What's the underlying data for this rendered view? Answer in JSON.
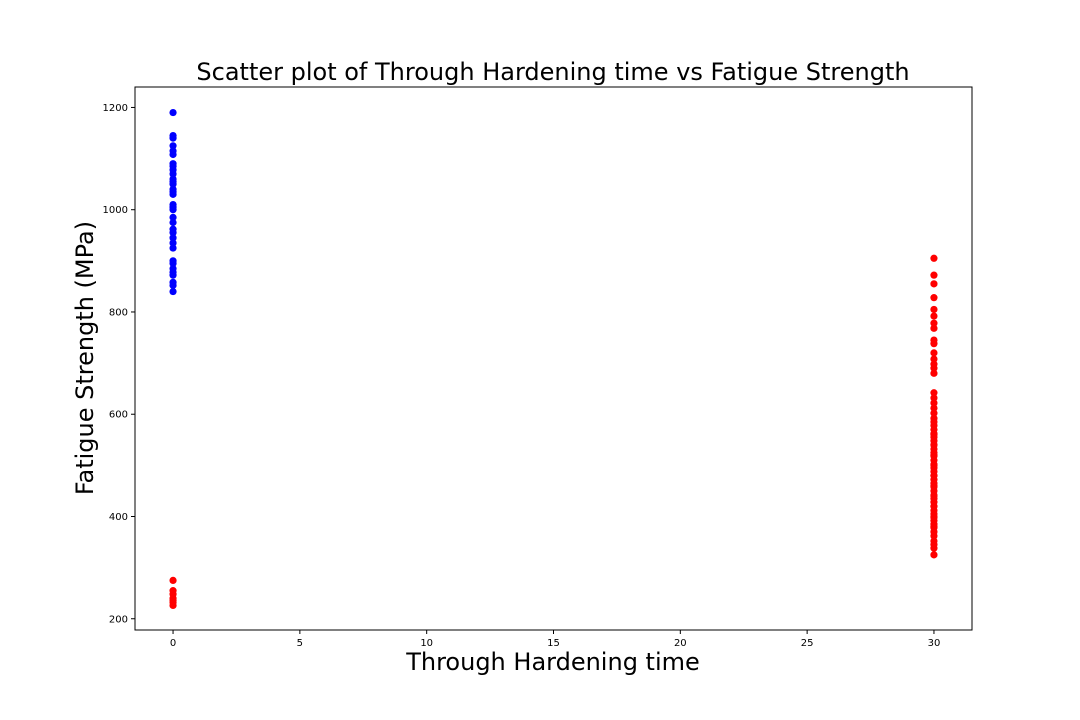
{
  "chart_data": {
    "type": "scatter",
    "title": "Scatter plot of Through Hardening time vs Fatigue Strength",
    "xlabel": "Through Hardening time",
    "ylabel": "Fatigue Strength (MPa)",
    "xlim": [
      -1.5,
      31.5
    ],
    "ylim": [
      178,
      1240
    ],
    "x_ticks": [
      0,
      5,
      10,
      15,
      20,
      25,
      30
    ],
    "y_ticks": [
      200,
      400,
      600,
      800,
      1000,
      1200
    ],
    "x_tick_labels": [
      "0",
      "5",
      "10",
      "15",
      "20",
      "25",
      "30"
    ],
    "y_tick_labels": [
      "200",
      "400",
      "600",
      "800",
      "1000",
      "1200"
    ],
    "grid": false,
    "series": [
      {
        "color": "#0000ff",
        "x": [
          0,
          0,
          0,
          0,
          0,
          0,
          0,
          0,
          0,
          0,
          0,
          0,
          0,
          0,
          0,
          0,
          0,
          0,
          0,
          0,
          0,
          0,
          0,
          0,
          0,
          0,
          0,
          0,
          0,
          0,
          0,
          0,
          0,
          0
        ],
        "y": [
          1190,
          1145,
          1140,
          1125,
          1115,
          1108,
          1090,
          1085,
          1078,
          1070,
          1060,
          1055,
          1040,
          1035,
          1030,
          1010,
          1005,
          1000,
          985,
          975,
          962,
          955,
          945,
          935,
          925,
          900,
          895,
          885,
          878,
          872,
          858,
          852,
          840,
          1050
        ]
      },
      {
        "color": "#ff0000",
        "x": [
          0,
          0,
          0,
          0,
          0,
          0,
          0,
          30,
          30,
          30,
          30,
          30,
          30,
          30,
          30,
          30,
          30,
          30,
          30,
          30,
          30,
          30,
          30,
          30,
          30,
          30,
          30,
          30,
          30,
          30,
          30,
          30,
          30,
          30,
          30,
          30,
          30,
          30,
          30,
          30,
          30,
          30,
          30,
          30,
          30,
          30,
          30,
          30,
          30,
          30,
          30,
          30,
          30,
          30,
          30,
          30,
          30,
          30,
          30,
          30,
          30,
          30,
          30,
          30,
          30,
          30,
          30,
          30,
          30,
          30,
          30,
          30,
          30
        ],
        "y": [
          275,
          255,
          248,
          240,
          236,
          232,
          226,
          905,
          872,
          855,
          828,
          805,
          792,
          778,
          768,
          745,
          738,
          720,
          708,
          698,
          690,
          680,
          642,
          632,
          622,
          612,
          602,
          592,
          585,
          578,
          570,
          562,
          555,
          548,
          540,
          532,
          525,
          518,
          510,
          502,
          495,
          488,
          480,
          472,
          465,
          458,
          450,
          442,
          435,
          428,
          420,
          412,
          405,
          398,
          392,
          385,
          378,
          370,
          362,
          352,
          345,
          338,
          325,
          560,
          540,
          520,
          500,
          480,
          460,
          440,
          420,
          400,
          380
        ]
      }
    ]
  }
}
